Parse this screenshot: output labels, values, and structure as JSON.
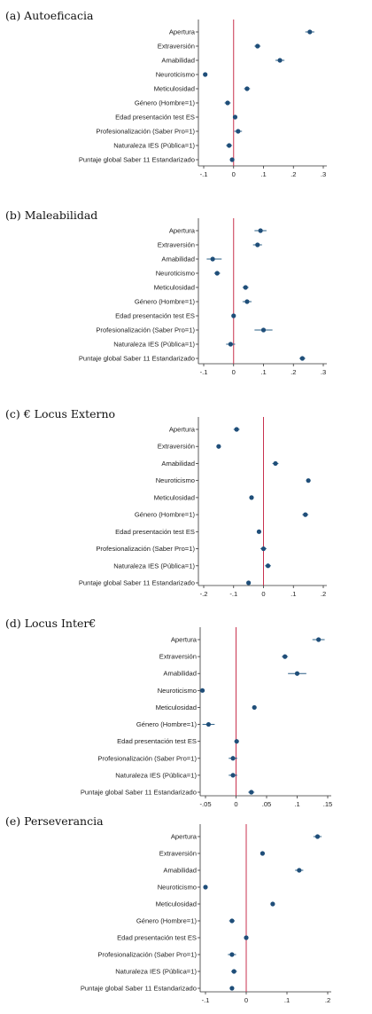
{
  "chart_data": [
    {
      "type": "scatter",
      "title": "(a) Autoeficacia",
      "categories": [
        "Apertura",
        "Extraversión",
        "Amabilidad",
        "Neuroticismo",
        "Meticulosidad",
        "Género (Hombre=1)",
        "Edad presentación test ES",
        "Profesionalización (Saber Pro=1)",
        "Naturaleza IES (Pública=1)",
        "Puntaje global Saber 11 Estandarizado"
      ],
      "values": [
        0.255,
        0.08,
        0.155,
        -0.095,
        0.045,
        -0.02,
        0.005,
        0.015,
        -0.015,
        -0.005
      ],
      "ci_low": [
        0.24,
        0.07,
        0.14,
        -0.1,
        0.035,
        -0.03,
        -0.002,
        0.002,
        -0.025,
        -0.012
      ],
      "ci_high": [
        0.27,
        0.09,
        0.17,
        -0.09,
        0.055,
        -0.01,
        0.012,
        0.028,
        -0.005,
        0.002
      ],
      "xlim": [
        -0.1,
        0.3
      ],
      "xticks": [
        -0.1,
        0,
        0.1,
        0.2,
        0.3
      ],
      "xtick_labels": [
        "-.1",
        "0",
        ".1",
        ".2",
        ".3"
      ],
      "ref_line": 0
    },
    {
      "type": "scatter",
      "title": "(b) Maleabilidad",
      "categories": [
        "Apertura",
        "Extraversión",
        "Amabilidad",
        "Neuroticismo",
        "Meticulosidad",
        "Género (Hombre=1)",
        "Edad presentación test ES",
        "Profesionalización (Saber Pro=1)",
        "Naturaleza IES (Pública=1)",
        "Puntaje global Saber 11 Estandarizado"
      ],
      "values": [
        0.09,
        0.08,
        -0.07,
        -0.055,
        0.04,
        0.045,
        0.0,
        0.1,
        -0.01,
        0.23
      ],
      "ci_low": [
        0.07,
        0.065,
        -0.09,
        -0.065,
        0.03,
        0.03,
        -0.005,
        0.07,
        -0.025,
        0.22
      ],
      "ci_high": [
        0.11,
        0.095,
        -0.04,
        -0.045,
        0.05,
        0.06,
        0.005,
        0.13,
        0.005,
        0.24
      ],
      "xlim": [
        -0.1,
        0.3
      ],
      "xticks": [
        -0.1,
        0,
        0.1,
        0.2,
        0.3
      ],
      "xtick_labels": [
        "-.1",
        "0",
        ".1",
        ".2",
        ".3"
      ],
      "ref_line": 0
    },
    {
      "type": "scatter",
      "title": "(c) € Locus Externo",
      "categories": [
        "Apertura",
        "Extraversión",
        "Amabilidad",
        "Neuroticismo",
        "Meticulosidad",
        "Género (Hombre=1)",
        "Edad presentación test ES",
        "Profesionalización (Saber Pro=1)",
        "Naturaleza IES (Pública=1)",
        "Puntaje global Saber 11 Estandarizado"
      ],
      "values": [
        -0.09,
        -0.15,
        0.04,
        0.15,
        -0.04,
        0.14,
        -0.015,
        0.0,
        0.015,
        -0.05
      ],
      "ci_low": [
        -0.1,
        -0.155,
        0.03,
        0.145,
        -0.045,
        0.13,
        -0.02,
        -0.01,
        0.005,
        -0.055
      ],
      "ci_high": [
        -0.08,
        -0.145,
        0.05,
        0.155,
        -0.035,
        0.15,
        -0.01,
        0.01,
        0.025,
        -0.045
      ],
      "xlim": [
        -0.2,
        0.2
      ],
      "xticks": [
        -0.2,
        -0.1,
        0,
        0.1,
        0.2
      ],
      "xtick_labels": [
        "-.2",
        "-.1",
        "0",
        ".1",
        ".2"
      ],
      "ref_line": 0
    },
    {
      "type": "scatter",
      "title": "(d) Locus Inter€",
      "categories": [
        "Apertura",
        "Extraversión",
        "Amabilidad",
        "Neuroticismo",
        "Meticulosidad",
        "Género (Hombre=1)",
        "Edad presentación test ES",
        "Profesionalización (Saber Pro=1)",
        "Naturaleza IES (Pública=1)",
        "Puntaje global Saber 11 Estandarizado"
      ],
      "values": [
        0.135,
        0.08,
        0.1,
        -0.055,
        0.03,
        -0.045,
        0.001,
        -0.005,
        -0.005,
        0.025
      ],
      "ci_low": [
        0.125,
        0.075,
        0.085,
        -0.058,
        0.027,
        -0.055,
        -0.002,
        -0.012,
        -0.012,
        0.02
      ],
      "ci_high": [
        0.145,
        0.085,
        0.115,
        -0.052,
        0.033,
        -0.035,
        0.004,
        0.002,
        0.002,
        0.03
      ],
      "xlim": [
        -0.05,
        0.15
      ],
      "xticks": [
        -0.05,
        0,
        0.05,
        0.1,
        0.15
      ],
      "xtick_labels": [
        "-.05",
        "0",
        ".05",
        ".1",
        ".15"
      ],
      "ref_line": 0
    },
    {
      "type": "scatter",
      "title": "(e) Perseverancia",
      "categories": [
        "Apertura",
        "Extraversión",
        "Amabilidad",
        "Neuroticismo",
        "Meticulosidad",
        "Género (Hombre=1)",
        "Edad presentación test ES",
        "Profesionalización (Saber Pro=1)",
        "Naturaleza IES (Pública=1)",
        "Puntaje global Saber 11 Estandarizado"
      ],
      "values": [
        0.175,
        0.04,
        0.13,
        -0.1,
        0.065,
        -0.035,
        0.0,
        -0.035,
        -0.03,
        -0.035
      ],
      "ci_low": [
        0.165,
        0.035,
        0.12,
        -0.105,
        0.06,
        -0.042,
        -0.003,
        -0.045,
        -0.037,
        -0.04
      ],
      "ci_high": [
        0.185,
        0.045,
        0.14,
        -0.095,
        0.07,
        -0.028,
        0.003,
        -0.025,
        -0.023,
        -0.03
      ],
      "xlim": [
        -0.1,
        0.2
      ],
      "xticks": [
        -0.1,
        0,
        0.1,
        0.2
      ],
      "xtick_labels": [
        "-.1",
        "0",
        ".1",
        ".2"
      ],
      "ref_line": 0
    }
  ]
}
